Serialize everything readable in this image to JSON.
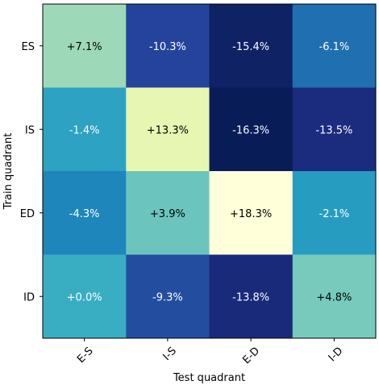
{
  "chart_data": {
    "type": "heatmap",
    "title": "",
    "xlabel": "Test quadrant",
    "ylabel": "Train quadrant",
    "x_categories": [
      "E-S",
      "I-S",
      "E-D",
      "I-D"
    ],
    "y_categories": [
      "ES",
      "IS",
      "ED",
      "ID"
    ],
    "values": [
      [
        7.1,
        -10.3,
        -15.4,
        -6.1
      ],
      [
        -1.4,
        13.3,
        -16.3,
        -13.5
      ],
      [
        -4.3,
        3.9,
        18.3,
        -2.1
      ],
      [
        0.0,
        -9.3,
        -13.8,
        4.8
      ]
    ],
    "labels": [
      [
        "+7.1%",
        "-10.3%",
        "-15.4%",
        "-6.1%"
      ],
      [
        "-1.4%",
        "+13.3%",
        "-16.3%",
        "-13.5%"
      ],
      [
        "-4.3%",
        "+3.9%",
        "+18.3%",
        "-2.1%"
      ],
      [
        "+0.0%",
        "-9.3%",
        "-13.8%",
        "+4.8%"
      ]
    ],
    "colormap": "YlGnBu",
    "x_tick_rotation_deg": 45
  }
}
